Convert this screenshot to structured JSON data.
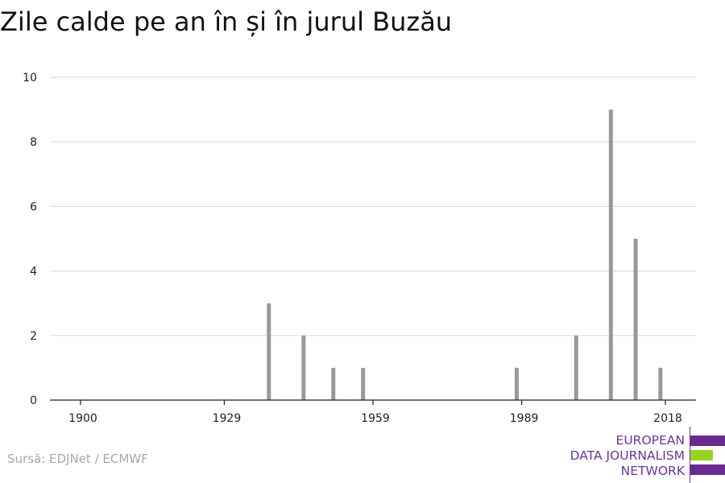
{
  "title": "Zile calde pe an în și în jurul Buzău",
  "source": "Sursă: EDJNet / ECMWF",
  "logo": {
    "lines": [
      "EUROPEAN",
      "DATA JOURNALISM",
      "NETWORK"
    ],
    "colors": {
      "purple": "#6b2a8f",
      "green": "#97d421"
    }
  },
  "chart_data": {
    "type": "bar",
    "title": "Zile calde pe an în și în jurul Buzău",
    "xlabel": "",
    "ylabel": "",
    "xlim": [
      1900,
      2018
    ],
    "ylim": [
      0,
      10
    ],
    "x_ticks": [
      1900,
      1929,
      1959,
      1989,
      2018
    ],
    "y_ticks": [
      0,
      2,
      4,
      6,
      8,
      10
    ],
    "grid": true,
    "bar_color": "#999999",
    "points": [
      {
        "x": 1938,
        "y": 3
      },
      {
        "x": 1945,
        "y": 2
      },
      {
        "x": 1951,
        "y": 1
      },
      {
        "x": 1957,
        "y": 1
      },
      {
        "x": 1988,
        "y": 1
      },
      {
        "x": 2000,
        "y": 2
      },
      {
        "x": 2007,
        "y": 9
      },
      {
        "x": 2012,
        "y": 5
      },
      {
        "x": 2017,
        "y": 1
      }
    ]
  }
}
